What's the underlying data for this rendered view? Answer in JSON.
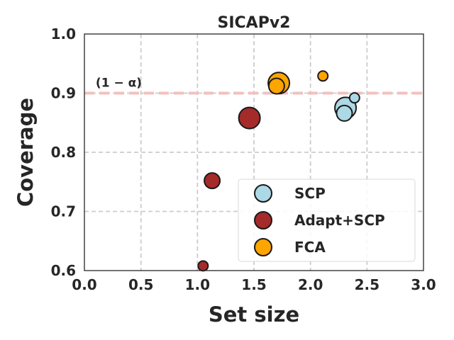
{
  "chart_data": {
    "type": "scatter",
    "title": "SICAPv2",
    "xlabel": "Set size",
    "ylabel": "Coverage",
    "xlim": [
      0.0,
      3.0
    ],
    "ylim": [
      0.6,
      1.0
    ],
    "xticks": [
      "0.0",
      "0.5",
      "1.0",
      "1.5",
      "2.0",
      "2.5",
      "3.0"
    ],
    "yticks": [
      "0.6",
      "0.7",
      "0.8",
      "0.9",
      "1.0"
    ],
    "grid": true,
    "legend_position": "lower-right",
    "reference_line": {
      "y": 0.9,
      "label": "(1 − α)",
      "color": "#f2c0c0"
    },
    "series": [
      {
        "name": "SCP",
        "color": "#add8e6",
        "points": [
          {
            "x": 2.31,
            "y": 0.875,
            "size": "large"
          },
          {
            "x": 2.39,
            "y": 0.892,
            "size": "small"
          },
          {
            "x": 2.3,
            "y": 0.866,
            "size": "medium"
          }
        ]
      },
      {
        "name": "Adapt+SCP",
        "color": "#a52a2a",
        "points": [
          {
            "x": 1.46,
            "y": 0.858,
            "size": "large"
          },
          {
            "x": 1.13,
            "y": 0.752,
            "size": "medium"
          },
          {
            "x": 1.05,
            "y": 0.608,
            "size": "small"
          }
        ]
      },
      {
        "name": "FCA",
        "color": "#ffa500",
        "points": [
          {
            "x": 1.72,
            "y": 0.917,
            "size": "large"
          },
          {
            "x": 1.7,
            "y": 0.912,
            "size": "medium"
          },
          {
            "x": 2.11,
            "y": 0.929,
            "size": "small"
          }
        ]
      }
    ]
  }
}
